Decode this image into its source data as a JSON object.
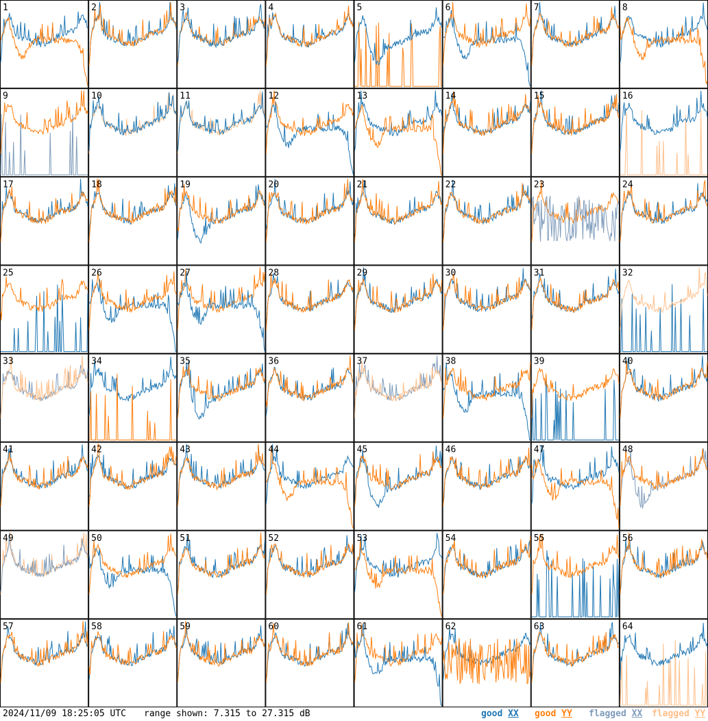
{
  "footer": {
    "timestamp": "2024/11/09 18:25:05 UTC",
    "range_text": "range shown: 7.315 to 27.315 dB",
    "legend": [
      {
        "prefix": "good ",
        "suffix": "XX",
        "color": "#1f77b4"
      },
      {
        "prefix": "good ",
        "suffix": "YY",
        "color": "#ff7f0e"
      },
      {
        "prefix": "flagged ",
        "suffix": "XX",
        "color": "#7f9cbb"
      },
      {
        "prefix": "flagged ",
        "suffix": "YY",
        "color": "#ffbf8a"
      }
    ]
  },
  "chart_data": {
    "type": "line",
    "layout": "small-multiples 8x8",
    "range_db": [
      7.315,
      27.315
    ],
    "colors": {
      "good_xx": "#1f77b4",
      "good_yy": "#ff7f0e",
      "flagged_xx": "#7f9cbb",
      "flagged_yy": "#ffbf8a"
    },
    "panels": [
      {
        "label": "1",
        "xx": "good",
        "yy": "good",
        "yy_shape": "rolloff",
        "fore": "yy"
      },
      {
        "label": "2",
        "xx": "good",
        "yy": "good",
        "fore": "yy"
      },
      {
        "label": "3",
        "xx": "good",
        "yy": "good",
        "fore": "xx"
      },
      {
        "label": "4",
        "xx": "good",
        "yy": "good",
        "fore": "yy"
      },
      {
        "label": "5",
        "xx": "good",
        "yy": "good",
        "yy_shape": "spikes",
        "xx_shape": "dip",
        "fore": "xx"
      },
      {
        "label": "6",
        "xx": "good",
        "yy": "good",
        "xx_shape": "rolloff",
        "fore": "yy"
      },
      {
        "label": "7",
        "xx": "good",
        "yy": "good",
        "fore": "yy"
      },
      {
        "label": "8",
        "xx": "good",
        "yy": "good",
        "yy_shape": "rolloff",
        "fore": "yy"
      },
      {
        "label": "9",
        "xx": "flagged",
        "yy": "good",
        "xx_shape": "spikes",
        "fore": "yy"
      },
      {
        "label": "10",
        "xx": "good",
        "yy": "flagged",
        "fore": "xx"
      },
      {
        "label": "11",
        "xx": "good",
        "yy": "flagged",
        "fore": "xx"
      },
      {
        "label": "12",
        "xx": "good",
        "yy": "good",
        "xx_shape": "rolloff",
        "fore": "yy"
      },
      {
        "label": "13",
        "xx": "good",
        "yy": "good",
        "yy_shape": "rolloff",
        "fore": "yy"
      },
      {
        "label": "14",
        "xx": "good",
        "yy": "good",
        "fore": "yy"
      },
      {
        "label": "15",
        "xx": "good",
        "yy": "good",
        "fore": "yy"
      },
      {
        "label": "16",
        "xx": "good",
        "yy": "flagged",
        "yy_shape": "spikes",
        "fore": "xx"
      },
      {
        "label": "17",
        "xx": "good",
        "yy": "good",
        "fore": "yy"
      },
      {
        "label": "18",
        "xx": "good",
        "yy": "good",
        "fore": "yy"
      },
      {
        "label": "19",
        "xx": "good",
        "yy": "good",
        "xx_shape": "dip",
        "fore": "yy"
      },
      {
        "label": "20",
        "xx": "good",
        "yy": "good",
        "fore": "yy"
      },
      {
        "label": "21",
        "xx": "good",
        "yy": "good",
        "fore": "yy"
      },
      {
        "label": "22",
        "xx": "good",
        "yy": "good",
        "fore": "yy"
      },
      {
        "label": "23",
        "xx": "flagged",
        "yy": "good",
        "xx_shape": "noisy",
        "fore": "xx"
      },
      {
        "label": "24",
        "xx": "good",
        "yy": "good",
        "fore": "yy"
      },
      {
        "label": "25",
        "xx": "good",
        "yy": "good",
        "xx_shape": "spikes",
        "fore": "yy"
      },
      {
        "label": "26",
        "xx": "good",
        "yy": "good",
        "xx_shape": "rolloff",
        "fore": "yy"
      },
      {
        "label": "27",
        "xx": "good",
        "yy": "good",
        "xx_shape": "rolloff",
        "fore": "xx"
      },
      {
        "label": "28",
        "xx": "good",
        "yy": "good",
        "fore": "yy"
      },
      {
        "label": "29",
        "xx": "good",
        "yy": "good",
        "fore": "yy"
      },
      {
        "label": "30",
        "xx": "good",
        "yy": "good",
        "fore": "yy"
      },
      {
        "label": "31",
        "xx": "good",
        "yy": "good",
        "fore": "yy"
      },
      {
        "label": "32",
        "xx": "good",
        "yy": "flagged",
        "xx_shape": "spikes",
        "fore": "yy"
      },
      {
        "label": "33",
        "xx": "flagged",
        "yy": "flagged",
        "fore": "yy"
      },
      {
        "label": "34",
        "xx": "good",
        "yy": "good",
        "yy_shape": "spikes",
        "fore": "yy"
      },
      {
        "label": "35",
        "xx": "good",
        "yy": "good",
        "xx_shape": "dip",
        "fore": "yy"
      },
      {
        "label": "36",
        "xx": "good",
        "yy": "good",
        "fore": "yy"
      },
      {
        "label": "37",
        "xx": "flagged",
        "yy": "flagged",
        "fore": "yy"
      },
      {
        "label": "38",
        "xx": "good",
        "yy": "good",
        "xx_shape": "rolloff",
        "fore": "yy"
      },
      {
        "label": "39",
        "xx": "good",
        "yy": "good",
        "xx_shape": "spikes",
        "fore": "yy"
      },
      {
        "label": "40",
        "xx": "good",
        "yy": "good",
        "fore": "yy"
      },
      {
        "label": "41",
        "xx": "good",
        "yy": "good",
        "fore": "yy"
      },
      {
        "label": "42",
        "xx": "good",
        "yy": "good",
        "fore": "yy"
      },
      {
        "label": "43",
        "xx": "good",
        "yy": "good",
        "fore": "yy"
      },
      {
        "label": "44",
        "xx": "good",
        "yy": "good",
        "yy_shape": "rolloff",
        "fore": "yy"
      },
      {
        "label": "45",
        "xx": "good",
        "yy": "good",
        "xx_shape": "dip",
        "fore": "yy"
      },
      {
        "label": "46",
        "xx": "good",
        "yy": "good",
        "fore": "yy"
      },
      {
        "label": "47",
        "xx": "good",
        "yy": "good",
        "yy_shape": "rolloff",
        "fore": "yy"
      },
      {
        "label": "48",
        "xx": "flagged",
        "yy": "good",
        "xx_shape": "dip",
        "fore": "yy"
      },
      {
        "label": "49",
        "xx": "flagged",
        "yy": "flagged",
        "fore": "xx"
      },
      {
        "label": "50",
        "xx": "good",
        "yy": "good",
        "xx_shape": "rolloff",
        "fore": "yy"
      },
      {
        "label": "51",
        "xx": "good",
        "yy": "good",
        "fore": "yy"
      },
      {
        "label": "52",
        "xx": "good",
        "yy": "good",
        "fore": "yy"
      },
      {
        "label": "53",
        "xx": "good",
        "yy": "good",
        "yy_shape": "rolloff",
        "fore": "yy"
      },
      {
        "label": "54",
        "xx": "good",
        "yy": "good",
        "fore": "yy"
      },
      {
        "label": "55",
        "xx": "good",
        "yy": "good",
        "xx_shape": "spikes",
        "fore": "yy"
      },
      {
        "label": "56",
        "xx": "good",
        "yy": "good",
        "fore": "yy"
      },
      {
        "label": "57",
        "xx": "good",
        "yy": "good",
        "fore": "yy"
      },
      {
        "label": "58",
        "xx": "good",
        "yy": "good",
        "fore": "yy"
      },
      {
        "label": "59",
        "xx": "good",
        "yy": "good",
        "fore": "yy"
      },
      {
        "label": "60",
        "xx": "good",
        "yy": "good",
        "fore": "yy"
      },
      {
        "label": "61",
        "xx": "good",
        "yy": "good",
        "xx_shape": "rolloff",
        "fore": "xx"
      },
      {
        "label": "62",
        "xx": "good",
        "yy": "good",
        "yy_shape": "noisy",
        "fore": "yy"
      },
      {
        "label": "63",
        "xx": "good",
        "yy": "good",
        "fore": "yy"
      },
      {
        "label": "64",
        "xx": "good",
        "yy": "flagged",
        "yy_shape": "spikes",
        "fore": "xx"
      }
    ]
  }
}
